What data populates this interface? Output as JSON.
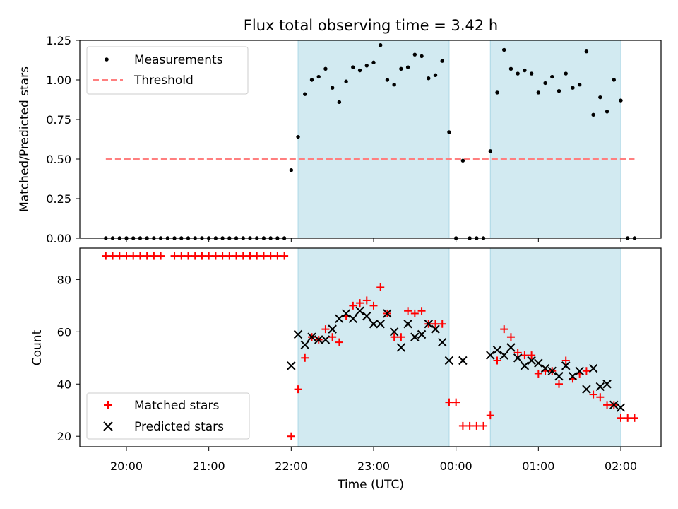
{
  "chart_data": {
    "title": "Flux total observing time = 3.42 h",
    "type": "scatter",
    "xlabel": "Time (UTC)",
    "x_ticks": [
      "20:00",
      "21:00",
      "22:00",
      "23:00",
      "00:00",
      "01:00",
      "02:00"
    ],
    "shaded_intervals": [
      {
        "start": "22:05",
        "end": "23:55"
      },
      {
        "start": "00:25",
        "end": "02:00"
      }
    ],
    "colors": {
      "shade": "#add8e6",
      "measurements": "#000000",
      "threshold": "#ff7f7f",
      "matched": "#ff0000",
      "predicted": "#000000"
    },
    "panels": [
      {
        "name": "ratio",
        "ylabel": "Matched/Predicted stars",
        "ylim": [
          0,
          1.25
        ],
        "yticks": [
          "0.00",
          "0.25",
          "0.50",
          "0.75",
          "1.00",
          "1.25"
        ],
        "legend": {
          "position": "top-left",
          "entries": [
            "Measurements",
            "Threshold"
          ]
        },
        "threshold": {
          "label": "Threshold",
          "value": 0.5,
          "x_start": "19:45",
          "x_end": "02:10"
        },
        "series": [
          {
            "name": "Measurements",
            "x": [
              "19:45",
              "19:50",
              "19:55",
              "20:00",
              "20:05",
              "20:10",
              "20:15",
              "20:20",
              "20:25",
              "20:30",
              "20:35",
              "20:40",
              "20:45",
              "20:50",
              "20:55",
              "21:00",
              "21:05",
              "21:10",
              "21:15",
              "21:20",
              "21:25",
              "21:30",
              "21:35",
              "21:40",
              "21:45",
              "21:50",
              "21:55",
              "22:00",
              "22:05",
              "22:10",
              "22:15",
              "22:20",
              "22:25",
              "22:30",
              "22:35",
              "22:40",
              "22:45",
              "22:50",
              "22:55",
              "23:00",
              "23:05",
              "23:10",
              "23:15",
              "23:20",
              "23:25",
              "23:30",
              "23:35",
              "23:40",
              "23:45",
              "23:50",
              "23:55",
              "00:00",
              "00:05",
              "00:10",
              "00:15",
              "00:20",
              "00:25",
              "00:30",
              "00:35",
              "00:40",
              "00:45",
              "00:50",
              "00:55",
              "01:00",
              "01:05",
              "01:10",
              "01:15",
              "01:20",
              "01:25",
              "01:30",
              "01:35",
              "01:40",
              "01:45",
              "01:50",
              "01:55",
              "02:00",
              "02:05",
              "02:10"
            ],
            "y": [
              0,
              0,
              0,
              0,
              0,
              0,
              0,
              0,
              0,
              0,
              0,
              0,
              0,
              0,
              0,
              0,
              0,
              0,
              0,
              0,
              0,
              0,
              0,
              0,
              0,
              0,
              0,
              0.43,
              0.64,
              0.91,
              1.0,
              1.02,
              1.07,
              0.95,
              0.86,
              0.99,
              1.08,
              1.06,
              1.09,
              1.11,
              1.22,
              1.0,
              0.97,
              1.07,
              1.08,
              1.16,
              1.15,
              1.01,
              1.03,
              1.12,
              0.67,
              0,
              0.49,
              0,
              0,
              0,
              0.55,
              0.92,
              1.19,
              1.07,
              1.04,
              1.06,
              1.04,
              0.92,
              0.98,
              1.02,
              0.93,
              1.04,
              0.95,
              0.97,
              1.18,
              0.78,
              0.89,
              0.8,
              1.0,
              0.87,
              0,
              0
            ]
          }
        ]
      },
      {
        "name": "count",
        "ylabel": "Count",
        "ylim": [
          16,
          92
        ],
        "yticks": [
          "20",
          "40",
          "60",
          "80"
        ],
        "legend": {
          "position": "bottom-left",
          "entries": [
            "Matched stars",
            "Predicted stars"
          ]
        },
        "series": [
          {
            "name": "Matched stars",
            "marker": "+",
            "x": [
              "19:45",
              "19:50",
              "19:55",
              "20:00",
              "20:05",
              "20:10",
              "20:15",
              "20:20",
              "20:25",
              "20:35",
              "20:40",
              "20:45",
              "20:50",
              "20:55",
              "21:00",
              "21:05",
              "21:10",
              "21:15",
              "21:20",
              "21:25",
              "21:30",
              "21:35",
              "21:40",
              "21:45",
              "21:50",
              "21:55",
              "22:00",
              "22:05",
              "22:10",
              "22:15",
              "22:20",
              "22:25",
              "22:30",
              "22:35",
              "22:40",
              "22:45",
              "22:50",
              "22:55",
              "23:00",
              "23:05",
              "23:10",
              "23:15",
              "23:20",
              "23:25",
              "23:30",
              "23:35",
              "23:40",
              "23:45",
              "23:50",
              "23:55",
              "00:00",
              "00:05",
              "00:10",
              "00:15",
              "00:20",
              "00:25",
              "00:30",
              "00:35",
              "00:40",
              "00:45",
              "00:50",
              "00:55",
              "01:00",
              "01:05",
              "01:10",
              "01:15",
              "01:20",
              "01:25",
              "01:30",
              "01:35",
              "01:40",
              "01:45",
              "01:50",
              "01:55",
              "02:00",
              "02:05",
              "02:10"
            ],
            "y": [
              89,
              89,
              89,
              89,
              89,
              89,
              89,
              89,
              89,
              89,
              89,
              89,
              89,
              89,
              89,
              89,
              89,
              89,
              89,
              89,
              89,
              89,
              89,
              89,
              89,
              89,
              20,
              38,
              50,
              58,
              57,
              61,
              58,
              56,
              66,
              70,
              71,
              72,
              70,
              77,
              67,
              58,
              58,
              68,
              67,
              68,
              63,
              63,
              63,
              33,
              33,
              24,
              24,
              24,
              24,
              28,
              49,
              61,
              58,
              52,
              51,
              51,
              44,
              45,
              45,
              40,
              49,
              42,
              44,
              45,
              36,
              35,
              32,
              32,
              27,
              27,
              27
            ]
          },
          {
            "name": "Predicted stars",
            "marker": "x",
            "x": [
              "22:00",
              "22:05",
              "22:10",
              "22:15",
              "22:20",
              "22:25",
              "22:30",
              "22:35",
              "22:40",
              "22:45",
              "22:50",
              "22:55",
              "23:00",
              "23:05",
              "23:10",
              "23:15",
              "23:20",
              "23:25",
              "23:30",
              "23:35",
              "23:40",
              "23:45",
              "23:50",
              "23:55",
              "00:05",
              "00:25",
              "00:30",
              "00:35",
              "00:40",
              "00:45",
              "00:50",
              "00:55",
              "01:00",
              "01:05",
              "01:10",
              "01:15",
              "01:20",
              "01:25",
              "01:30",
              "01:35",
              "01:40",
              "01:45",
              "01:50",
              "01:55",
              "02:00"
            ],
            "y": [
              47,
              59,
              55,
              58,
              57,
              57,
              61,
              65,
              67,
              65,
              68,
              66,
              63,
              63,
              67,
              60,
              54,
              63,
              58,
              59,
              63,
              61,
              56,
              49,
              49,
              51,
              53,
              51,
              54,
              50,
              47,
              49,
              48,
              46,
              45,
              43,
              47,
              43,
              45,
              38,
              46,
              39,
              40,
              32,
              31
            ]
          }
        ]
      }
    ]
  }
}
